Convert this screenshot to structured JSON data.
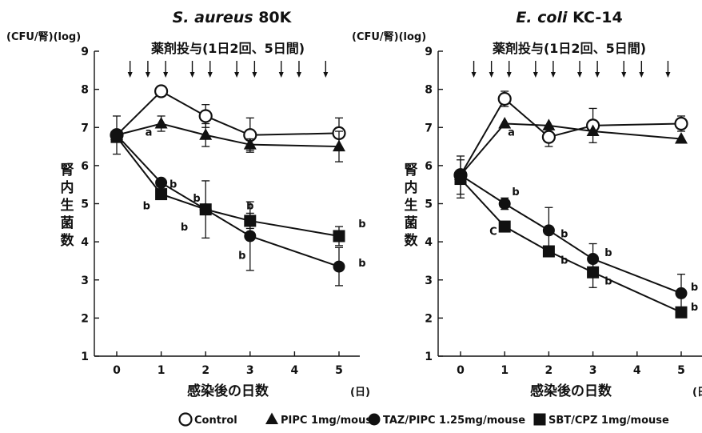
{
  "chart_data": [
    {
      "type": "line",
      "title_italic": "S. aureus",
      "title_rest": " 80K",
      "unit_label": "(CFU/腎)(log)",
      "ylabel": "腎内生菌数",
      "xlabel": "感染後の日数",
      "xunit": "(日)",
      "dosing_label": "薬剤投与(1日2回、5日間)",
      "dosing_times": [
        0.3,
        0.7,
        1.1,
        1.7,
        2.1,
        2.7,
        3.1,
        3.7,
        4.1,
        4.7
      ],
      "x_ticks": [
        "0",
        "1",
        "2",
        "3",
        "4",
        "5"
      ],
      "y_ticks": [
        "1",
        "2",
        "3",
        "4",
        "5",
        "6",
        "7",
        "8",
        "9"
      ],
      "xlim": [
        -0.5,
        5.5
      ],
      "ylim": [
        1,
        9
      ],
      "series": [
        {
          "name": "Control",
          "marker": "circle-open",
          "points": [
            {
              "x": 0,
              "y": 6.8,
              "err": 0.5
            },
            {
              "x": 1,
              "y": 7.95,
              "err": 0
            },
            {
              "x": 2,
              "y": 7.3,
              "err": 0.3
            },
            {
              "x": 3,
              "y": 6.8,
              "err": 0.45
            },
            {
              "x": 5,
              "y": 6.85,
              "err": 0.4
            }
          ]
        },
        {
          "name": "PIPC 1mg/mouse",
          "marker": "triangle",
          "points": [
            {
              "x": 0,
              "y": 6.8,
              "err": 0
            },
            {
              "x": 1,
              "y": 7.1,
              "err": 0.2
            },
            {
              "x": 2,
              "y": 6.8,
              "err": 0.3
            },
            {
              "x": 3,
              "y": 6.55,
              "err": 0.15
            },
            {
              "x": 5,
              "y": 6.5,
              "err": 0.4
            }
          ]
        },
        {
          "name": "TAZ/PIPC 1.25mg/mouse",
          "marker": "circle",
          "points": [
            {
              "x": 0,
              "y": 6.8,
              "err": 0
            },
            {
              "x": 1,
              "y": 5.55,
              "err": 0
            },
            {
              "x": 2,
              "y": 4.85,
              "err": 0
            },
            {
              "x": 3,
              "y": 4.15,
              "err": 0.9
            },
            {
              "x": 5,
              "y": 3.35,
              "err": 0.5
            }
          ]
        },
        {
          "name": "SBT/CPZ 1mg/mouse",
          "marker": "square",
          "points": [
            {
              "x": 0,
              "y": 6.75,
              "err": 0
            },
            {
              "x": 1,
              "y": 5.25,
              "err": 0
            },
            {
              "x": 2,
              "y": 4.85,
              "err": 0.75
            },
            {
              "x": 3,
              "y": 4.55,
              "err": 0.2
            },
            {
              "x": 5,
              "y": 4.15,
              "err": 0.25
            }
          ]
        }
      ],
      "annotations": [
        {
          "text": "a",
          "x": 0.72,
          "y": 6.78
        },
        {
          "text": "b",
          "x": 1.27,
          "y": 5.42
        },
        {
          "text": "b",
          "x": 0.67,
          "y": 4.85
        },
        {
          "text": "b",
          "x": 1.8,
          "y": 5.05
        },
        {
          "text": "b",
          "x": 1.52,
          "y": 4.3
        },
        {
          "text": "b",
          "x": 3.0,
          "y": 4.85
        },
        {
          "text": "b",
          "x": 2.82,
          "y": 3.55
        },
        {
          "text": "b",
          "x": 5.52,
          "y": 4.38
        },
        {
          "text": "b",
          "x": 5.52,
          "y": 3.35
        }
      ]
    },
    {
      "type": "line",
      "title_italic": "E. coli",
      "title_rest": " KC-14",
      "unit_label": "(CFU/腎)(log)",
      "ylabel": "腎内生菌数",
      "xlabel": "感染後の日数",
      "xunit": "(日)",
      "dosing_label": "薬剤投与(1日2回、5日間)",
      "dosing_times": [
        0.3,
        0.7,
        1.1,
        1.7,
        2.1,
        2.7,
        3.1,
        3.7,
        4.1,
        4.7
      ],
      "x_ticks": [
        "0",
        "1",
        "2",
        "3",
        "4",
        "5"
      ],
      "y_ticks": [
        "1",
        "2",
        "3",
        "4",
        "5",
        "6",
        "7",
        "8",
        "9"
      ],
      "xlim": [
        -0.5,
        5.5
      ],
      "ylim": [
        1,
        9
      ],
      "series": [
        {
          "name": "Control",
          "marker": "circle-open",
          "points": [
            {
              "x": 0,
              "y": 5.75,
              "err": 0.5
            },
            {
              "x": 1,
              "y": 7.75,
              "err": 0.2
            },
            {
              "x": 2,
              "y": 6.75,
              "err": 0.25
            },
            {
              "x": 3,
              "y": 7.05,
              "err": 0.45
            },
            {
              "x": 5,
              "y": 7.1,
              "err": 0.2
            }
          ]
        },
        {
          "name": "PIPC 1mg/mouse",
          "marker": "triangle",
          "points": [
            {
              "x": 0,
              "y": 5.75,
              "err": 0
            },
            {
              "x": 1,
              "y": 7.1,
              "err": 0
            },
            {
              "x": 2,
              "y": 7.05,
              "err": 0
            },
            {
              "x": 3,
              "y": 6.9,
              "err": 0
            },
            {
              "x": 5,
              "y": 6.7,
              "err": 0
            }
          ]
        },
        {
          "name": "TAZ/PIPC 1.25mg/mouse",
          "marker": "circle",
          "points": [
            {
              "x": 0,
              "y": 5.75,
              "err": 0
            },
            {
              "x": 1,
              "y": 5.0,
              "err": 0.15
            },
            {
              "x": 2,
              "y": 4.3,
              "err": 0.6
            },
            {
              "x": 3,
              "y": 3.55,
              "err": 0.4
            },
            {
              "x": 5,
              "y": 2.65,
              "err": 0.5
            }
          ]
        },
        {
          "name": "SBT/CPZ 1mg/mouse",
          "marker": "square",
          "points": [
            {
              "x": 0,
              "y": 5.65,
              "err": 0.5
            },
            {
              "x": 1,
              "y": 4.4,
              "err": 0
            },
            {
              "x": 2,
              "y": 3.75,
              "err": 0
            },
            {
              "x": 3,
              "y": 3.2,
              "err": 0.4
            },
            {
              "x": 5,
              "y": 2.15,
              "err": 0
            }
          ]
        }
      ],
      "annotations": [
        {
          "text": "a",
          "x": 1.15,
          "y": 6.78
        },
        {
          "text": "b",
          "x": 1.25,
          "y": 5.22
        },
        {
          "text": "C",
          "x": 0.74,
          "y": 4.18
        },
        {
          "text": "b",
          "x": 2.35,
          "y": 4.12
        },
        {
          "text": "b",
          "x": 2.35,
          "y": 3.42
        },
        {
          "text": "b",
          "x": 3.35,
          "y": 3.62
        },
        {
          "text": "b",
          "x": 3.35,
          "y": 2.88
        },
        {
          "text": "b",
          "x": 5.3,
          "y": 2.72
        },
        {
          "text": "b",
          "x": 5.3,
          "y": 2.2
        }
      ]
    }
  ],
  "legend": [
    {
      "marker": "circle-open",
      "label": "Control"
    },
    {
      "marker": "triangle",
      "label": "PIPC 1mg/mouse"
    },
    {
      "marker": "circle",
      "label": "TAZ/PIPC 1.25mg/mouse"
    },
    {
      "marker": "square",
      "label": "SBT/CPZ 1mg/mouse"
    }
  ],
  "colors": {
    "ink": "#111111",
    "background": "#ffffff"
  }
}
